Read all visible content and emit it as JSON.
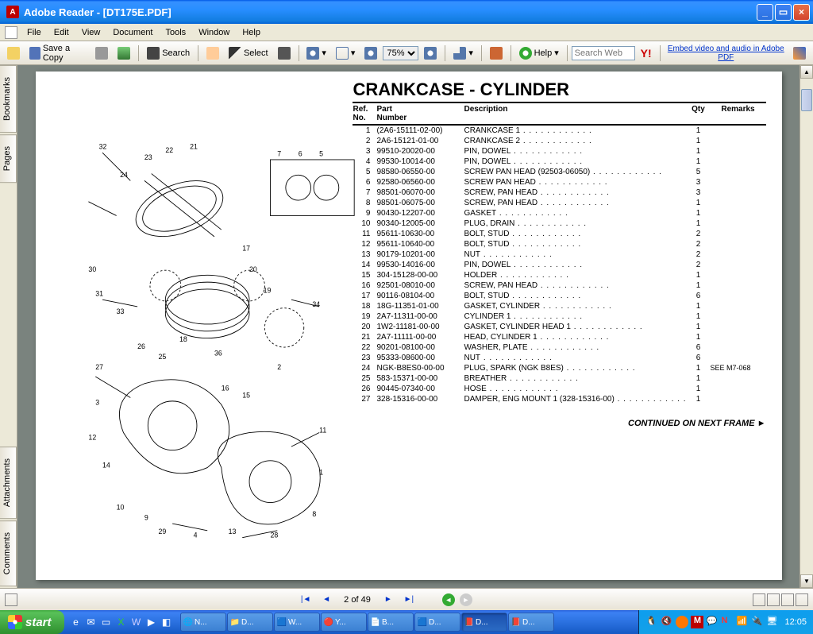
{
  "window": {
    "title": "Adobe Reader - [DT175E.PDF]"
  },
  "menu": {
    "items": [
      "File",
      "Edit",
      "View",
      "Document",
      "Tools",
      "Window",
      "Help"
    ]
  },
  "toolbar": {
    "save": "Save a Copy",
    "search": "Search",
    "select": "Select",
    "zoom": "75%",
    "help": "Help",
    "search_ph": "Search Web",
    "promo": "Embed video and audio in Adobe PDF"
  },
  "sidetabs": [
    "Bookmarks",
    "Pages",
    "Attachments",
    "Comments"
  ],
  "doc": {
    "title": "CRANKCASE - CYLINDER",
    "headers": {
      "ref": "Ref.\nNo.",
      "part": "Part\nNumber",
      "desc": "Description",
      "qty": "Qty",
      "rem": "Remarks"
    },
    "rows": [
      {
        "r": "1",
        "p": "(2A6-15111-02-00)",
        "d": "CRANKCASE 1",
        "q": "1",
        "m": ""
      },
      {
        "r": "2",
        "p": "2A6-15121-01-00",
        "d": "CRANKCASE 2",
        "q": "1",
        "m": ""
      },
      {
        "r": "3",
        "p": "99510-20020-00",
        "d": "PIN, DOWEL",
        "q": "1",
        "m": ""
      },
      {
        "r": "4",
        "p": "99530-10014-00",
        "d": "PIN, DOWEL",
        "q": "1",
        "m": ""
      },
      {
        "r": "5",
        "p": "98580-06550-00",
        "d": "SCREW PAN HEAD (92503-06050)",
        "q": "5",
        "m": ""
      },
      {
        "r": "6",
        "p": "92580-06560-00",
        "d": "SCREW PAN HEAD",
        "q": "3",
        "m": ""
      },
      {
        "r": "7",
        "p": "98501-06070-00",
        "d": "SCREW, PAN HEAD",
        "q": "3",
        "m": ""
      },
      {
        "r": "8",
        "p": "98501-06075-00",
        "d": "SCREW, PAN HEAD",
        "q": "1",
        "m": ""
      },
      {
        "r": "9",
        "p": "90430-12207-00",
        "d": "GASKET",
        "q": "1",
        "m": ""
      },
      {
        "r": "10",
        "p": "90340-12005-00",
        "d": "PLUG, DRAIN",
        "q": "1",
        "m": ""
      },
      {
        "r": "11",
        "p": "95611-10630-00",
        "d": "BOLT, STUD",
        "q": "2",
        "m": ""
      },
      {
        "r": "12",
        "p": "95611-10640-00",
        "d": "BOLT, STUD",
        "q": "2",
        "m": ""
      },
      {
        "r": "13",
        "p": "90179-10201-00",
        "d": "NUT",
        "q": "2",
        "m": ""
      },
      {
        "r": "14",
        "p": "99530-14016-00",
        "d": "PIN, DOWEL",
        "q": "2",
        "m": ""
      },
      {
        "r": "15",
        "p": "304-15128-00-00",
        "d": "HOLDER",
        "q": "1",
        "m": ""
      },
      {
        "r": "16",
        "p": "92501-08010-00",
        "d": "SCREW, PAN HEAD",
        "q": "1",
        "m": ""
      },
      {
        "r": "17",
        "p": "90116-08104-00",
        "d": "BOLT, STUD",
        "q": "6",
        "m": ""
      },
      {
        "r": "18",
        "p": "18G-11351-01-00",
        "d": "GASKET, CYLINDER",
        "q": "1",
        "m": ""
      },
      {
        "r": "19",
        "p": "2A7-11311-00-00",
        "d": "CYLINDER 1",
        "q": "1",
        "m": ""
      },
      {
        "r": "20",
        "p": "1W2-11181-00-00",
        "d": "GASKET, CYLINDER HEAD 1",
        "q": "1",
        "m": ""
      },
      {
        "r": "21",
        "p": "2A7-11111-00-00",
        "d": "HEAD, CYLINDER 1",
        "q": "1",
        "m": ""
      },
      {
        "r": "22",
        "p": "90201-08100-00",
        "d": "WASHER, PLATE",
        "q": "6",
        "m": ""
      },
      {
        "r": "23",
        "p": "95333-08600-00",
        "d": "NUT",
        "q": "6",
        "m": ""
      },
      {
        "r": "24",
        "p": "NGK-B8ES0-00-00",
        "d": "PLUG, SPARK (NGK B8ES)",
        "q": "1",
        "m": "SEE M7-068"
      },
      {
        "r": "25",
        "p": "583-15371-00-00",
        "d": "BREATHER",
        "q": "1",
        "m": ""
      },
      {
        "r": "26",
        "p": "90445-07340-00",
        "d": "HOSE",
        "q": "1",
        "m": ""
      },
      {
        "r": "27",
        "p": "328-15316-00-00",
        "d": "DAMPER, ENG MOUNT 1 (328-15316-00)",
        "q": "1",
        "m": ""
      }
    ],
    "continued": "CONTINUED ON NEXT FRAME ►"
  },
  "nav": {
    "page": "2 of 49"
  },
  "taskbar": {
    "start": "start",
    "tasks": [
      {
        "t": "N...",
        "a": false
      },
      {
        "t": "D...",
        "a": false
      },
      {
        "t": "W...",
        "a": false
      },
      {
        "t": "Y...",
        "a": false
      },
      {
        "t": "B...",
        "a": false
      },
      {
        "t": "D...",
        "a": false
      },
      {
        "t": "D...",
        "a": true
      },
      {
        "t": "D...",
        "a": false
      }
    ],
    "clock": "12:05"
  },
  "diagram_callouts": [
    "32",
    "24",
    "23",
    "22",
    "21",
    "7",
    "6",
    "5",
    "30",
    "31",
    "17",
    "20",
    "33",
    "18",
    "19",
    "34",
    "26",
    "25",
    "27",
    "36",
    "2",
    "3",
    "12",
    "16",
    "15",
    "14",
    "11",
    "1",
    "13",
    "29",
    "28",
    "4",
    "8",
    "10",
    "9"
  ]
}
